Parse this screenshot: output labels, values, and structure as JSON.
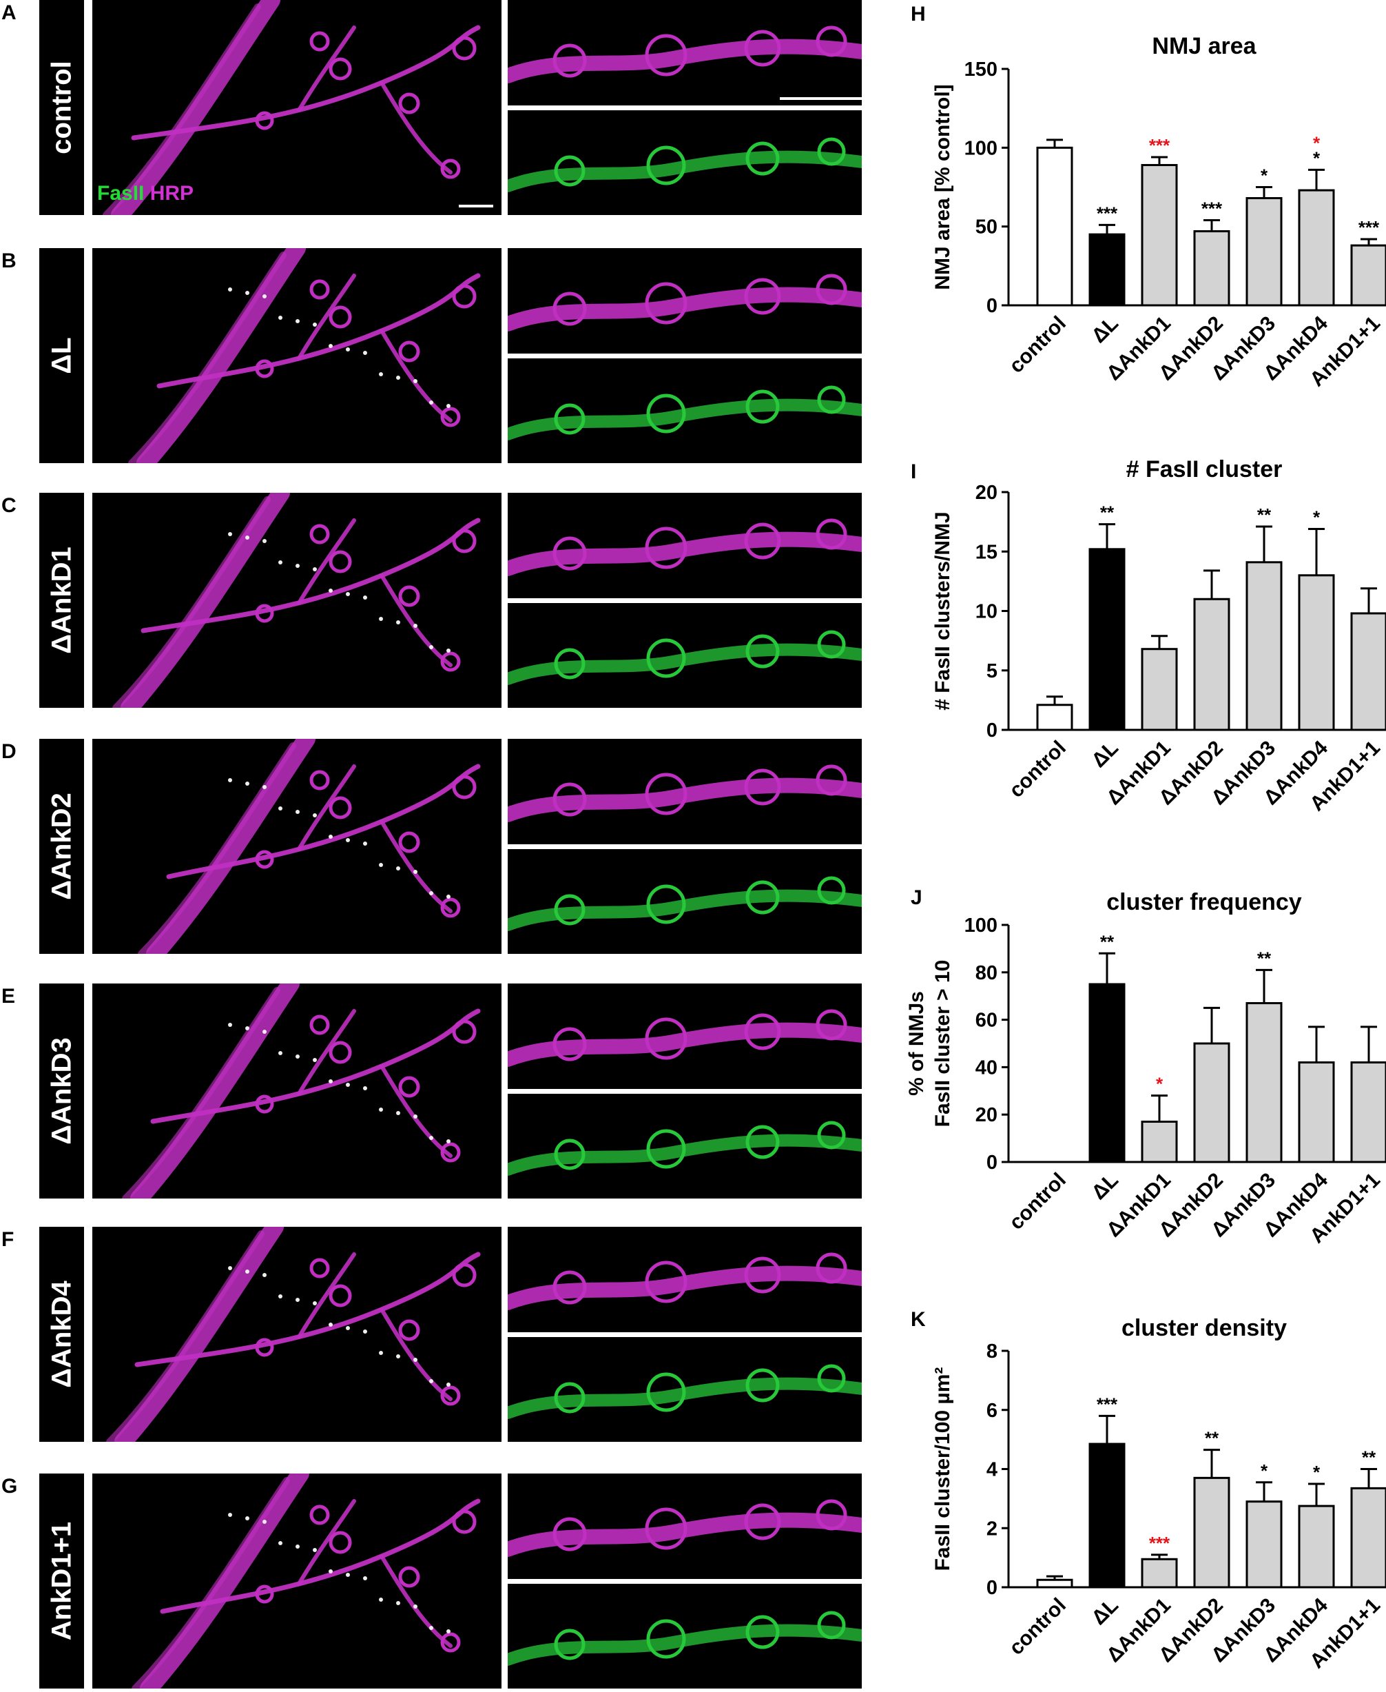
{
  "legend": {
    "green": "FasII",
    "magenta": "HRP"
  },
  "colors": {
    "magenta": "#c02fc2",
    "green": "#27c93a",
    "black_bar": "#000000",
    "white_bar": "#ffffff",
    "gray_bar": "#d3d3d3",
    "sig_black": "#000000",
    "sig_red": "#e8141a"
  },
  "rows": [
    {
      "letter": "A",
      "label": "control"
    },
    {
      "letter": "B",
      "label": "ΔL"
    },
    {
      "letter": "C",
      "label": "ΔAnkD1"
    },
    {
      "letter": "D",
      "label": "ΔAnkD2"
    },
    {
      "letter": "E",
      "label": "ΔAnkD3"
    },
    {
      "letter": "F",
      "label": "ΔAnkD4"
    },
    {
      "letter": "G",
      "label": "AnkD1+1"
    }
  ],
  "chart_data": [
    {
      "letter": "H",
      "type": "bar",
      "title": "NMJ area",
      "ylabel": "NMJ area [% control]",
      "ylim": [
        0,
        150
      ],
      "yticks": [
        "0",
        "50",
        "100",
        "150"
      ],
      "categories": [
        "control",
        "ΔL",
        "ΔAnkD1",
        "ΔAnkD2",
        "ΔAnkD3",
        "ΔAnkD4",
        "AnkD1+1"
      ],
      "values": [
        100,
        45,
        89,
        47,
        68,
        73,
        38
      ],
      "errors": [
        5,
        6,
        5,
        7,
        7,
        13,
        4
      ],
      "significance": [
        [],
        [
          {
            "text": "***",
            "color": "black"
          }
        ],
        [
          {
            "text": "***",
            "color": "red"
          }
        ],
        [
          {
            "text": "***",
            "color": "black"
          }
        ],
        [
          {
            "text": "*",
            "color": "black"
          }
        ],
        [
          {
            "text": "*",
            "color": "red"
          },
          {
            "text": "*",
            "color": "black"
          }
        ],
        [
          {
            "text": "***",
            "color": "black"
          }
        ]
      ]
    },
    {
      "letter": "I",
      "type": "bar",
      "title": "# FasII cluster",
      "ylabel": "# FasII clusters/NMJ",
      "ylim": [
        0,
        20
      ],
      "yticks": [
        "0",
        "5",
        "10",
        "15",
        "20"
      ],
      "categories": [
        "control",
        "ΔL",
        "ΔAnkD1",
        "ΔAnkD2",
        "ΔAnkD3",
        "ΔAnkD4",
        "AnkD1+1"
      ],
      "values": [
        2.1,
        15.2,
        6.8,
        11.0,
        14.1,
        13.0,
        9.8
      ],
      "errors": [
        0.7,
        2.1,
        1.1,
        2.4,
        3.0,
        3.9,
        2.1
      ],
      "significance": [
        [],
        [
          {
            "text": "**",
            "color": "black"
          }
        ],
        [],
        [],
        [
          {
            "text": "**",
            "color": "black"
          }
        ],
        [
          {
            "text": "*",
            "color": "black"
          }
        ],
        []
      ]
    },
    {
      "letter": "J",
      "type": "bar",
      "title": "cluster frequency",
      "ylabel": [
        "% of NMJs",
        "FasII cluster > 10"
      ],
      "ylim": [
        0,
        100
      ],
      "yticks": [
        "0",
        "20",
        "40",
        "60",
        "80",
        "100"
      ],
      "categories": [
        "control",
        "ΔL",
        "ΔAnkD1",
        "ΔAnkD2",
        "ΔAnkD3",
        "ΔAnkD4",
        "AnkD1+1"
      ],
      "values": [
        0,
        75,
        17,
        50,
        67,
        42,
        42
      ],
      "errors": [
        0,
        13,
        11,
        15,
        14,
        15,
        15
      ],
      "significance": [
        [],
        [
          {
            "text": "**",
            "color": "black"
          }
        ],
        [
          {
            "text": "*",
            "color": "red"
          }
        ],
        [],
        [
          {
            "text": "**",
            "color": "black"
          }
        ],
        [],
        []
      ]
    },
    {
      "letter": "K",
      "type": "bar",
      "title": "cluster density",
      "ylabel": "FasII cluster/100 µm²",
      "ylim": [
        0,
        8
      ],
      "yticks": [
        "0",
        "2",
        "4",
        "6",
        "8"
      ],
      "categories": [
        "control",
        "ΔL",
        "ΔAnkD1",
        "ΔAnkD2",
        "ΔAnkD3",
        "ΔAnkD4",
        "AnkD1+1"
      ],
      "values": [
        0.25,
        4.85,
        0.95,
        3.7,
        2.9,
        2.75,
        3.35
      ],
      "errors": [
        0.12,
        0.95,
        0.15,
        0.95,
        0.65,
        0.75,
        0.65
      ],
      "significance": [
        [],
        [
          {
            "text": "***",
            "color": "black"
          }
        ],
        [
          {
            "text": "***",
            "color": "red"
          }
        ],
        [
          {
            "text": "**",
            "color": "black"
          }
        ],
        [
          {
            "text": "*",
            "color": "black"
          }
        ],
        [
          {
            "text": "*",
            "color": "black"
          }
        ],
        [
          {
            "text": "**",
            "color": "black"
          }
        ]
      ]
    }
  ]
}
